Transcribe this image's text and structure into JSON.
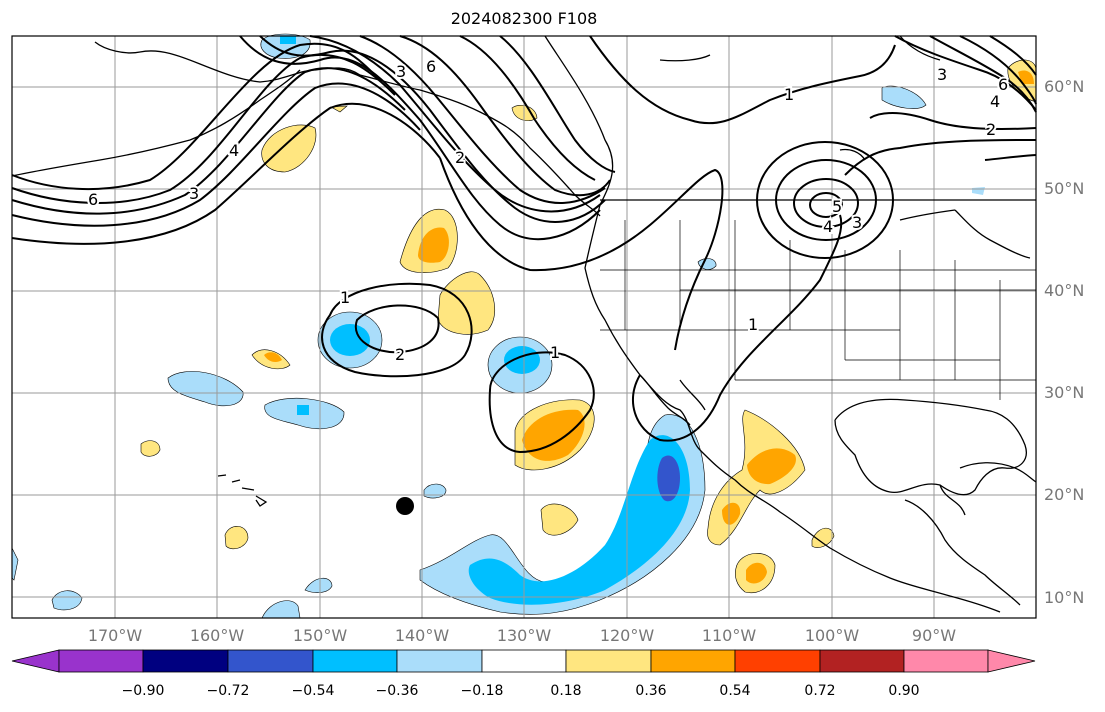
{
  "title": "2024082300 F108",
  "lat_labels": [
    "60°N",
    "50°N",
    "40°N",
    "30°N",
    "20°N",
    "10°N"
  ],
  "lon_labels": [
    "170°W",
    "160°W",
    "150°W",
    "140°W",
    "130°W",
    "120°W",
    "110°W",
    "100°W",
    "90°W"
  ],
  "colorbar": {
    "ticks": [
      "−0.90",
      "−0.72",
      "−0.54",
      "−0.36",
      "−0.18",
      "0.18",
      "0.36",
      "0.54",
      "0.72",
      "0.90"
    ],
    "colors": [
      "#9933cc",
      "#000080",
      "#3355cc",
      "#00bfff",
      "#aaddfa",
      "#ffffff",
      "#ffe680",
      "#ffa500",
      "#ff4000",
      "#b22222",
      "#ff88aa"
    ]
  },
  "contour_labels": [
    {
      "text": "6"
    },
    {
      "text": "3"
    },
    {
      "text": "4"
    },
    {
      "text": "3"
    },
    {
      "text": "6"
    },
    {
      "text": "2"
    },
    {
      "text": "1"
    },
    {
      "text": "2"
    },
    {
      "text": "1"
    },
    {
      "text": "1"
    },
    {
      "text": "1"
    },
    {
      "text": "5"
    },
    {
      "text": "4"
    },
    {
      "text": "3"
    },
    {
      "text": "2"
    },
    {
      "text": "3"
    },
    {
      "text": "4"
    },
    {
      "text": "6"
    }
  ],
  "marker": "black-dot",
  "colors": {
    "contour": "#000000",
    "grid": "#9a9a9a",
    "coast": "#000000",
    "axis_label": "#777777"
  }
}
